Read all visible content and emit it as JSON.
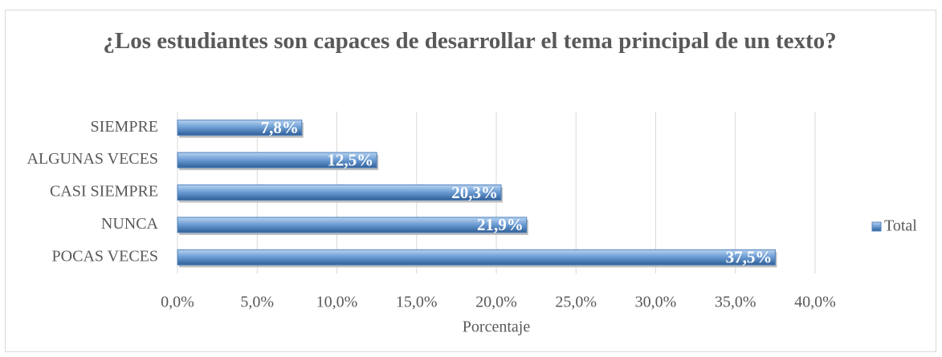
{
  "chart_data": {
    "type": "bar",
    "orientation": "horizontal",
    "title": "¿Los estudiantes son capaces de desarrollar el tema principal de un texto?",
    "x_label": "Porcentaje",
    "categories": [
      "SIEMPRE",
      "ALGUNAS VECES",
      "CASI SIEMPRE",
      "NUNCA",
      "POCAS VECES"
    ],
    "series": [
      {
        "name": "Total",
        "color": "#4f81bd",
        "values": [
          7.8,
          12.5,
          20.3,
          21.9,
          37.5
        ],
        "value_labels": [
          "7,8%",
          "12,5%",
          "20,3%",
          "21,9%",
          "37,5%"
        ]
      }
    ],
    "xlim": [
      0,
      40
    ],
    "xticks": [
      {
        "value": 0,
        "label": "0,0%"
      },
      {
        "value": 5,
        "label": "5,0%"
      },
      {
        "value": 10,
        "label": "10,0%"
      },
      {
        "value": 15,
        "label": "15,0%"
      },
      {
        "value": 20,
        "label": "20,0%"
      },
      {
        "value": 25,
        "label": "25,0%"
      },
      {
        "value": 30,
        "label": "30,0%"
      },
      {
        "value": 35,
        "label": "35,0%"
      },
      {
        "value": 40,
        "label": "40,0%"
      }
    ],
    "grid": true,
    "legend": "right"
  }
}
